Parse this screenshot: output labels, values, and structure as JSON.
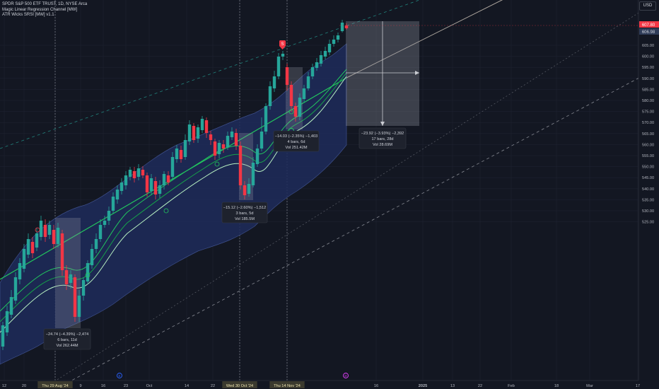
{
  "header": {
    "title": "SPDR S&P 500 ETF TRUST, 1D, NYSE Arca",
    "indicator1": "Magic Linear Regression Channel [MW]",
    "indicator2": "ATR Wicks SRSI [MW] v1.1"
  },
  "currency_button": "USD",
  "price_axis": {
    "ticks": [
      "605.00",
      "600.00",
      "595.00",
      "590.00",
      "585.00",
      "580.00",
      "575.00",
      "570.00",
      "565.00",
      "560.00",
      "555.00",
      "550.00",
      "545.00",
      "540.00",
      "535.00",
      "530.00",
      "525.00"
    ],
    "top_partial": "610.00",
    "last_price_label": "607.80",
    "last_price_color": "#f23645",
    "second_label": "606.98",
    "second_label_color": "#3a4a66"
  },
  "time_axis": {
    "labels": [
      "12",
      "20",
      "Thu 29 Aug '24",
      "9",
      "16",
      "23",
      "Oct",
      "14",
      "22",
      "Wed 30 Oct '24",
      "Thu 14 Nov '24",
      "16",
      "2025",
      "13",
      "22",
      "Feb",
      "18",
      "Mar",
      "17"
    ],
    "highlighted": [
      "Thu 29 Aug '24",
      "Wed 30 Oct '24",
      "Thu 14 Nov '24"
    ]
  },
  "measures": [
    {
      "line1": "−24.74 (−4.39%) −2,474",
      "line2": "6 bars, 11d",
      "line3": "Vol 262.44M"
    },
    {
      "line1": "−15.12 (−2.60%) −1,512",
      "line2": "3 bars, 5d",
      "line3": "Vol 185.5M"
    },
    {
      "line1": "−14.03 (−2.35%) −1,403",
      "line2": "4 bars, 6d",
      "line3": "Vol 251.42M"
    },
    {
      "line1": "−23.92 (−3.93%) −2,392",
      "line2": "17 bars, 28d",
      "line3": "Vol 28.69M"
    }
  ],
  "colors": {
    "background": "#131722",
    "bull": "#26a69a",
    "bear": "#f23645",
    "regression": "#22c55e",
    "channel_fill": "#1f2c5a",
    "dashed_green": "#26a69a",
    "dashed_gray": "#9598a1"
  },
  "markers": {
    "event_e": "E",
    "event_d": "D",
    "signal_down": "S"
  }
}
